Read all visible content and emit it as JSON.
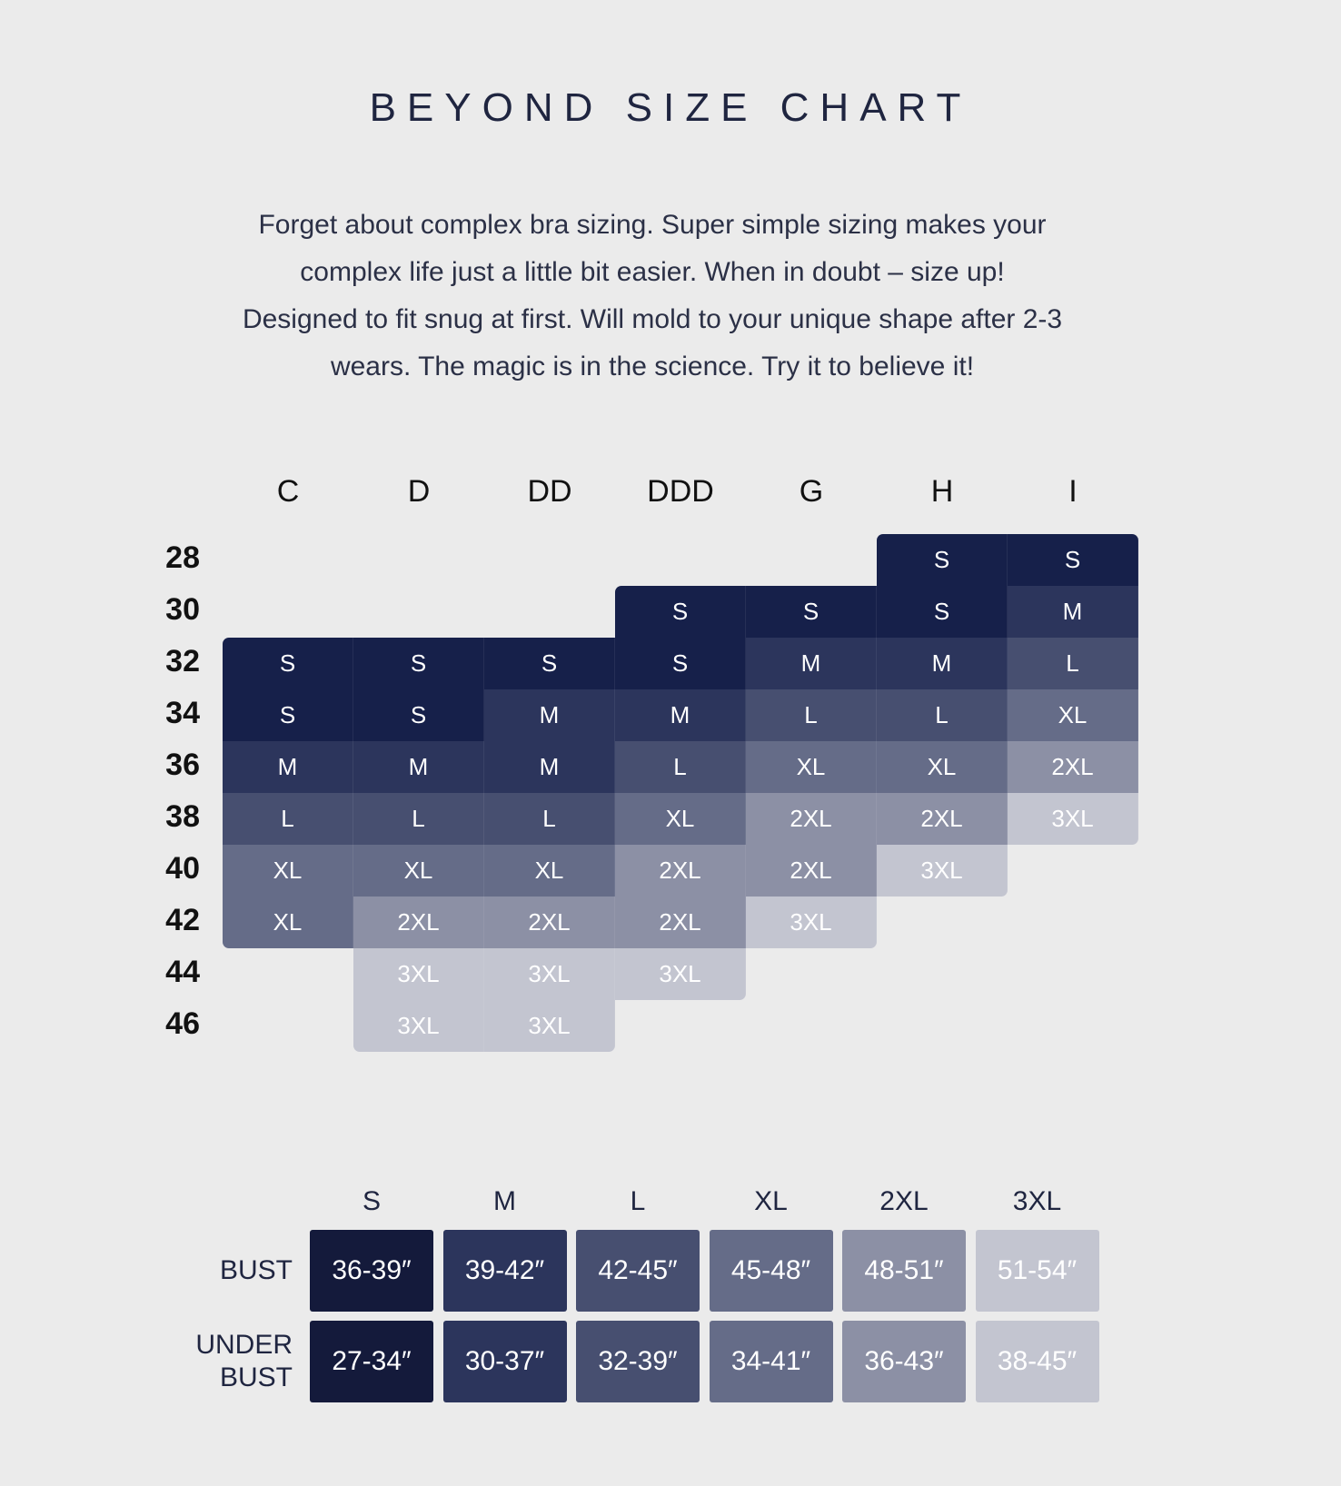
{
  "title": "BEYOND SIZE CHART",
  "intro": [
    "Forget about complex bra sizing. Super simple sizing makes your",
    "complex life just a little bit easier. When in doubt – size up!",
    "Designed to fit snug at first. Will mold to your unique shape after 2-3",
    "wears. The magic is in the science. Try it to believe it!"
  ],
  "colors": {
    "S": "#16204a",
    "M": "#2c355c",
    "L": "#474f70",
    "XL": "#656c88",
    "2XL": "#8c90a5",
    "3XL": "#c3c5d0",
    "S_measure": "#141a3b"
  },
  "chart_data": [
    {
      "type": "table",
      "columns": [
        "C",
        "D",
        "DD",
        "DDD",
        "G",
        "H",
        "I"
      ],
      "rows": [
        {
          "band": "28",
          "sizes": [
            "",
            "",
            "",
            "",
            "",
            "S",
            "S"
          ]
        },
        {
          "band": "30",
          "sizes": [
            "",
            "",
            "",
            "S",
            "S",
            "S",
            "M"
          ]
        },
        {
          "band": "32",
          "sizes": [
            "S",
            "S",
            "S",
            "S",
            "M",
            "M",
            "L"
          ]
        },
        {
          "band": "34",
          "sizes": [
            "S",
            "S",
            "M",
            "M",
            "L",
            "L",
            "XL"
          ]
        },
        {
          "band": "36",
          "sizes": [
            "M",
            "M",
            "M",
            "L",
            "XL",
            "XL",
            "2XL"
          ]
        },
        {
          "band": "38",
          "sizes": [
            "L",
            "L",
            "L",
            "XL",
            "2XL",
            "2XL",
            "3XL"
          ]
        },
        {
          "band": "40",
          "sizes": [
            "XL",
            "XL",
            "XL",
            "2XL",
            "2XL",
            "3XL",
            ""
          ]
        },
        {
          "band": "42",
          "sizes": [
            "XL",
            "2XL",
            "2XL",
            "2XL",
            "3XL",
            "",
            ""
          ]
        },
        {
          "band": "44",
          "sizes": [
            "",
            "3XL",
            "3XL",
            "3XL",
            "",
            "",
            ""
          ]
        },
        {
          "band": "46",
          "sizes": [
            "",
            "3XL",
            "3XL",
            "",
            "",
            "",
            ""
          ]
        }
      ]
    },
    {
      "type": "table",
      "columns": [
        "S",
        "M",
        "L",
        "XL",
        "2XL",
        "3XL"
      ],
      "rows": [
        {
          "label": "BUST",
          "label_lines": [
            "BUST"
          ],
          "values": [
            "36-39″",
            "39-42″",
            "42-45″",
            "45-48″",
            "48-51″",
            "51-54″"
          ]
        },
        {
          "label": "UNDER BUST",
          "label_lines": [
            "UNDER",
            "BUST"
          ],
          "values": [
            "27-34″",
            "30-37″",
            "32-39″",
            "34-41″",
            "36-43″",
            "38-45″"
          ]
        }
      ]
    }
  ]
}
